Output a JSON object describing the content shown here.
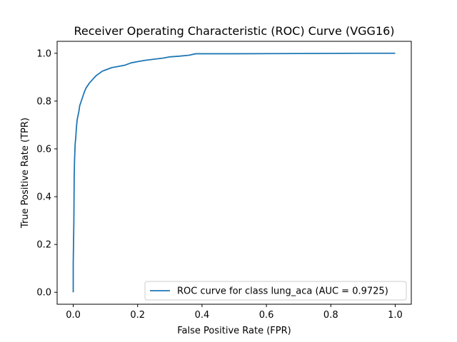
{
  "chart_data": {
    "type": "line",
    "title": "Receiver Operating Characteristic (ROC) Curve (VGG16)",
    "xlabel": "False Positive Rate (FPR)",
    "ylabel": "True Positive Rate (TPR)",
    "xlim": [
      -0.05,
      1.05
    ],
    "ylim": [
      -0.05,
      1.05
    ],
    "xticks": [
      0.0,
      0.2,
      0.4,
      0.6,
      0.8,
      1.0
    ],
    "yticks": [
      0.0,
      0.2,
      0.4,
      0.6,
      0.8,
      1.0
    ],
    "xtick_labels": [
      "0.0",
      "0.2",
      "0.4",
      "0.6",
      "0.8",
      "1.0"
    ],
    "ytick_labels": [
      "0.0",
      "0.2",
      "0.4",
      "0.6",
      "0.8",
      "1.0"
    ],
    "grid": false,
    "legend_position": "lower-right",
    "series": [
      {
        "name": "ROC curve for class lung_aca (AUC = 0.9725)",
        "color": "#1f77b4",
        "x": [
          0.0,
          0.0,
          0.002,
          0.003,
          0.004,
          0.006,
          0.008,
          0.01,
          0.012,
          0.015,
          0.018,
          0.02,
          0.025,
          0.03,
          0.035,
          0.04,
          0.045,
          0.05,
          0.06,
          0.07,
          0.08,
          0.09,
          0.1,
          0.12,
          0.14,
          0.16,
          0.18,
          0.2,
          0.22,
          0.25,
          0.28,
          0.3,
          0.33,
          0.36,
          0.38,
          0.5,
          0.7,
          0.9,
          1.0
        ],
        "y": [
          0.0,
          0.12,
          0.3,
          0.48,
          0.55,
          0.62,
          0.65,
          0.69,
          0.72,
          0.74,
          0.76,
          0.78,
          0.8,
          0.82,
          0.84,
          0.855,
          0.865,
          0.875,
          0.89,
          0.905,
          0.915,
          0.925,
          0.93,
          0.94,
          0.945,
          0.95,
          0.96,
          0.965,
          0.97,
          0.975,
          0.98,
          0.985,
          0.988,
          0.992,
          0.998,
          0.998,
          0.999,
          1.0,
          1.0
        ]
      }
    ]
  }
}
